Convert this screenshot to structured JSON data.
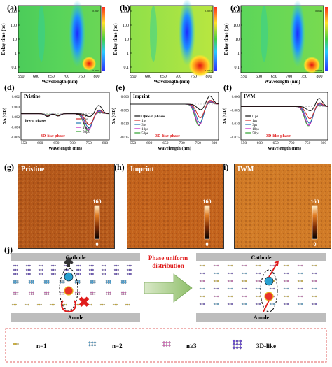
{
  "row1": {
    "panels": [
      {
        "label": "(a)",
        "scale_max": "0.0015",
        "scale_min": "-0.0016"
      },
      {
        "label": "(b)",
        "scale_max": "0.0053",
        "scale_min": "-0.0044"
      },
      {
        "label": "(c)",
        "scale_max": "0.0041",
        "scale_min": "-0.0023"
      }
    ],
    "ylabel": "Delay time (ps)",
    "xlabel": "Wavelength (nm)",
    "yticks": [
      "1000",
      "100",
      "10",
      "1",
      "0.1"
    ],
    "xticks": [
      "550",
      "600",
      "650",
      "700",
      "750",
      "800"
    ]
  },
  "row2": {
    "panels": [
      {
        "label": "(d)",
        "title": "Pristine",
        "annot1": "low-n phases",
        "annot2": "3D-like phase",
        "yticks": [
          "0.002",
          "0.000",
          "-0.002",
          "-0.004",
          "-0.006"
        ],
        "xticks": [
          "550",
          "600",
          "650",
          "700",
          "750",
          "800"
        ]
      },
      {
        "label": "(e)",
        "title": "Imprint",
        "annot1": "low-n phases",
        "annot2": "3D-like phase",
        "yticks": [
          "0.000",
          "-0.005",
          "-0.010",
          "-0.015"
        ],
        "xticks": [
          "550",
          "600",
          "650",
          "700",
          "750",
          "800"
        ]
      },
      {
        "label": "(f)",
        "title": "IWM",
        "annot1": "",
        "annot2": "3D-like phase",
        "yticks": [
          "0.000",
          "-0.005",
          "-0.010",
          "-0.015"
        ],
        "xticks": [
          "550",
          "600",
          "650",
          "700",
          "750",
          "800"
        ]
      }
    ],
    "ylabel": "ΔA (OD)",
    "xlabel": "Wavelength (nm)",
    "legend": [
      "0 ps",
      "1ps",
      "3ps",
      "10ps",
      "50ps"
    ],
    "colors": [
      "#111111",
      "#d62728",
      "#1f77b4",
      "#c21fc2",
      "#2ca02c"
    ]
  },
  "row3": {
    "panels": [
      {
        "label": "(g)",
        "title": "Pristine"
      },
      {
        "label": "(h)",
        "title": "Imprint"
      },
      {
        "label": "(i)",
        "title": "IWM"
      }
    ],
    "scale_max": "160",
    "scale_min": "0"
  },
  "panel_j": {
    "label": "(j)",
    "cathode": "Cathode",
    "anode": "Anode",
    "arrow_text_1": "Phase uniform",
    "arrow_text_2": "distribution",
    "legend": [
      "n=1",
      "n=2",
      "n≥3",
      "3D-like"
    ]
  }
}
